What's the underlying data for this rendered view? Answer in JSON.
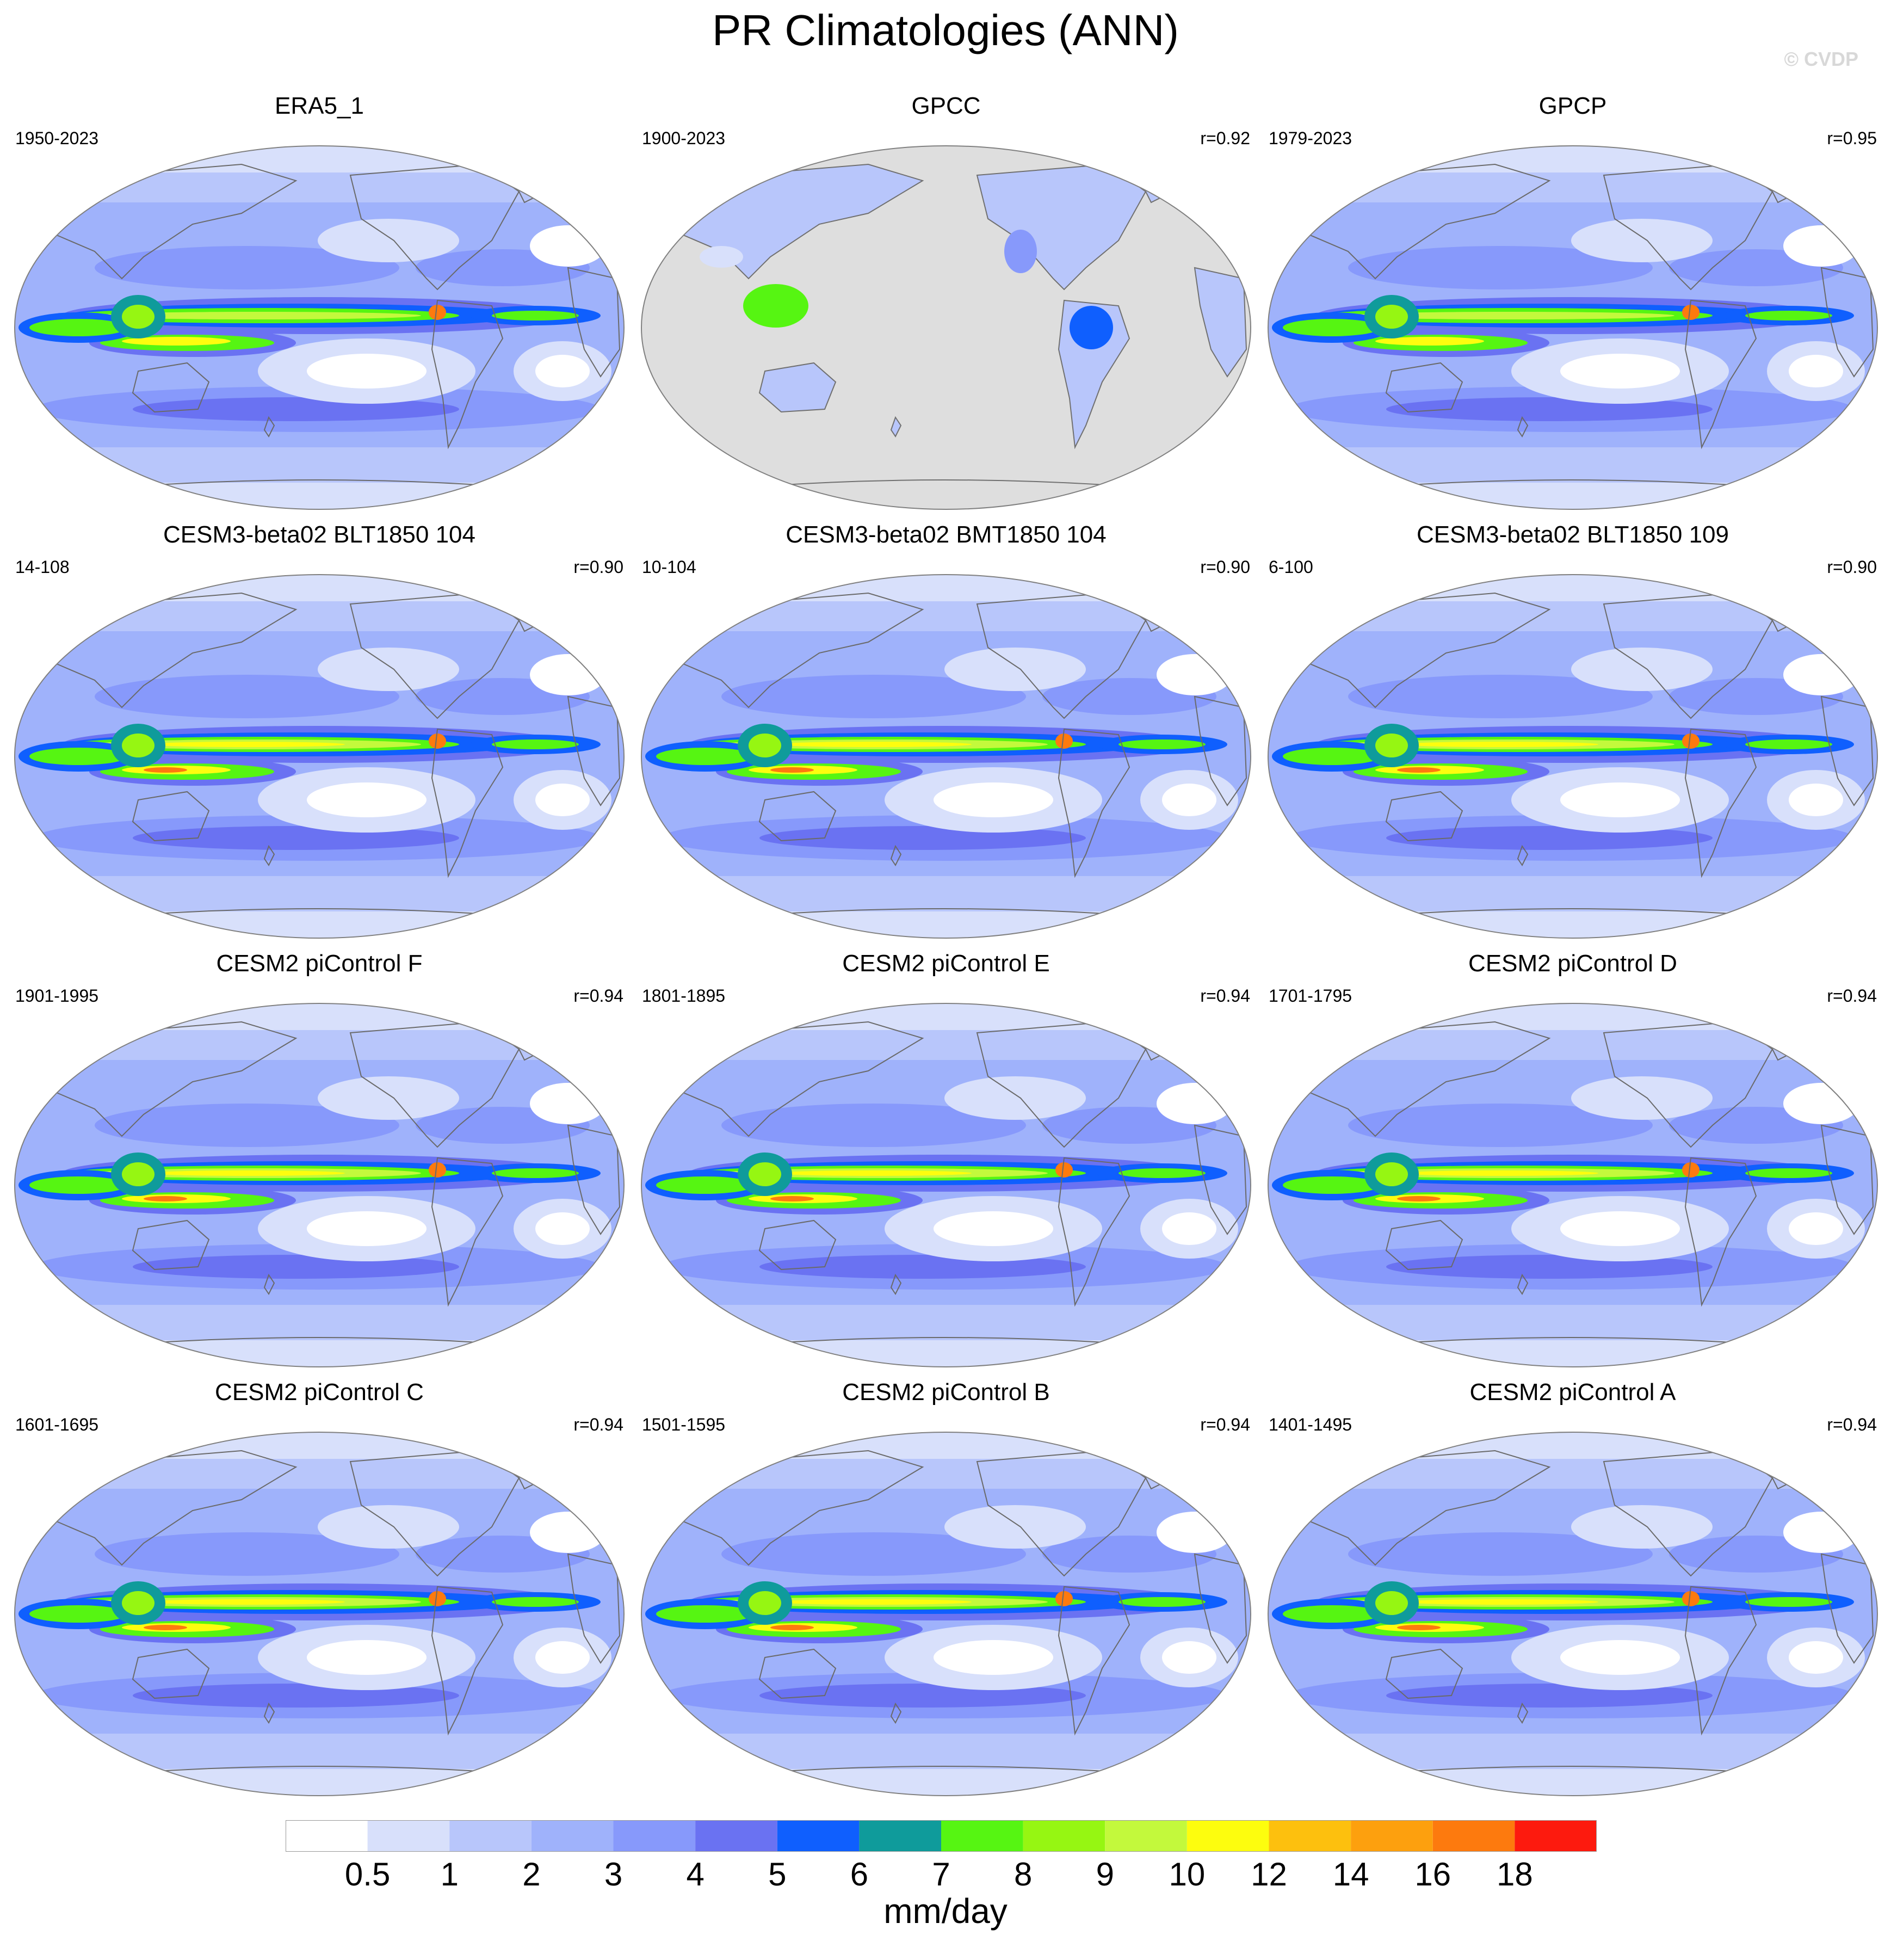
{
  "title": "PR Climatologies (ANN)",
  "watermark": "© CVDP",
  "panels": [
    {
      "title": "ERA5_1",
      "years": "1950-2023",
      "r": "",
      "style": "obs"
    },
    {
      "title": "GPCC",
      "years": "1900-2023",
      "r": "r=0.92",
      "style": "land"
    },
    {
      "title": "GPCP",
      "years": "1979-2023",
      "r": "r=0.95",
      "style": "obs"
    },
    {
      "title": "CESM3-beta02 BLT1850 104",
      "years": "14-108",
      "r": "r=0.90",
      "style": "cesm3"
    },
    {
      "title": "CESM3-beta02 BMT1850 104",
      "years": "10-104",
      "r": "r=0.90",
      "style": "cesm3"
    },
    {
      "title": "CESM3-beta02 BLT1850 109",
      "years": "6-100",
      "r": "r=0.90",
      "style": "cesm3"
    },
    {
      "title": "CESM2 piControl F",
      "years": "1901-1995",
      "r": "r=0.94",
      "style": "cesm2"
    },
    {
      "title": "CESM2 piControl E",
      "years": "1801-1895",
      "r": "r=0.94",
      "style": "cesm2"
    },
    {
      "title": "CESM2 piControl D",
      "years": "1701-1795",
      "r": "r=0.94",
      "style": "cesm2"
    },
    {
      "title": "CESM2 piControl C",
      "years": "1601-1695",
      "r": "r=0.94",
      "style": "cesm2"
    },
    {
      "title": "CESM2 piControl B",
      "years": "1501-1595",
      "r": "r=0.94",
      "style": "cesm2"
    },
    {
      "title": "CESM2 piControl A",
      "years": "1401-1495",
      "r": "r=0.94",
      "style": "cesm2"
    }
  ],
  "colorbar": {
    "levels": [
      "0.5",
      "1",
      "2",
      "3",
      "4",
      "5",
      "6",
      "7",
      "8",
      "9",
      "10",
      "12",
      "14",
      "16",
      "18"
    ],
    "colors": [
      "#ffffff",
      "#d8e0fb",
      "#b8c6fb",
      "#9fb2fb",
      "#8799fb",
      "#6a72f2",
      "#0f5ffe",
      "#0f9b9b",
      "#56f512",
      "#96f612",
      "#c3f93c",
      "#fdfd0e",
      "#fdc00e",
      "#fda00e",
      "#fd7a0e",
      "#fd1a0e"
    ],
    "units": "mm/day"
  },
  "land_mask_color": "#dedede"
}
